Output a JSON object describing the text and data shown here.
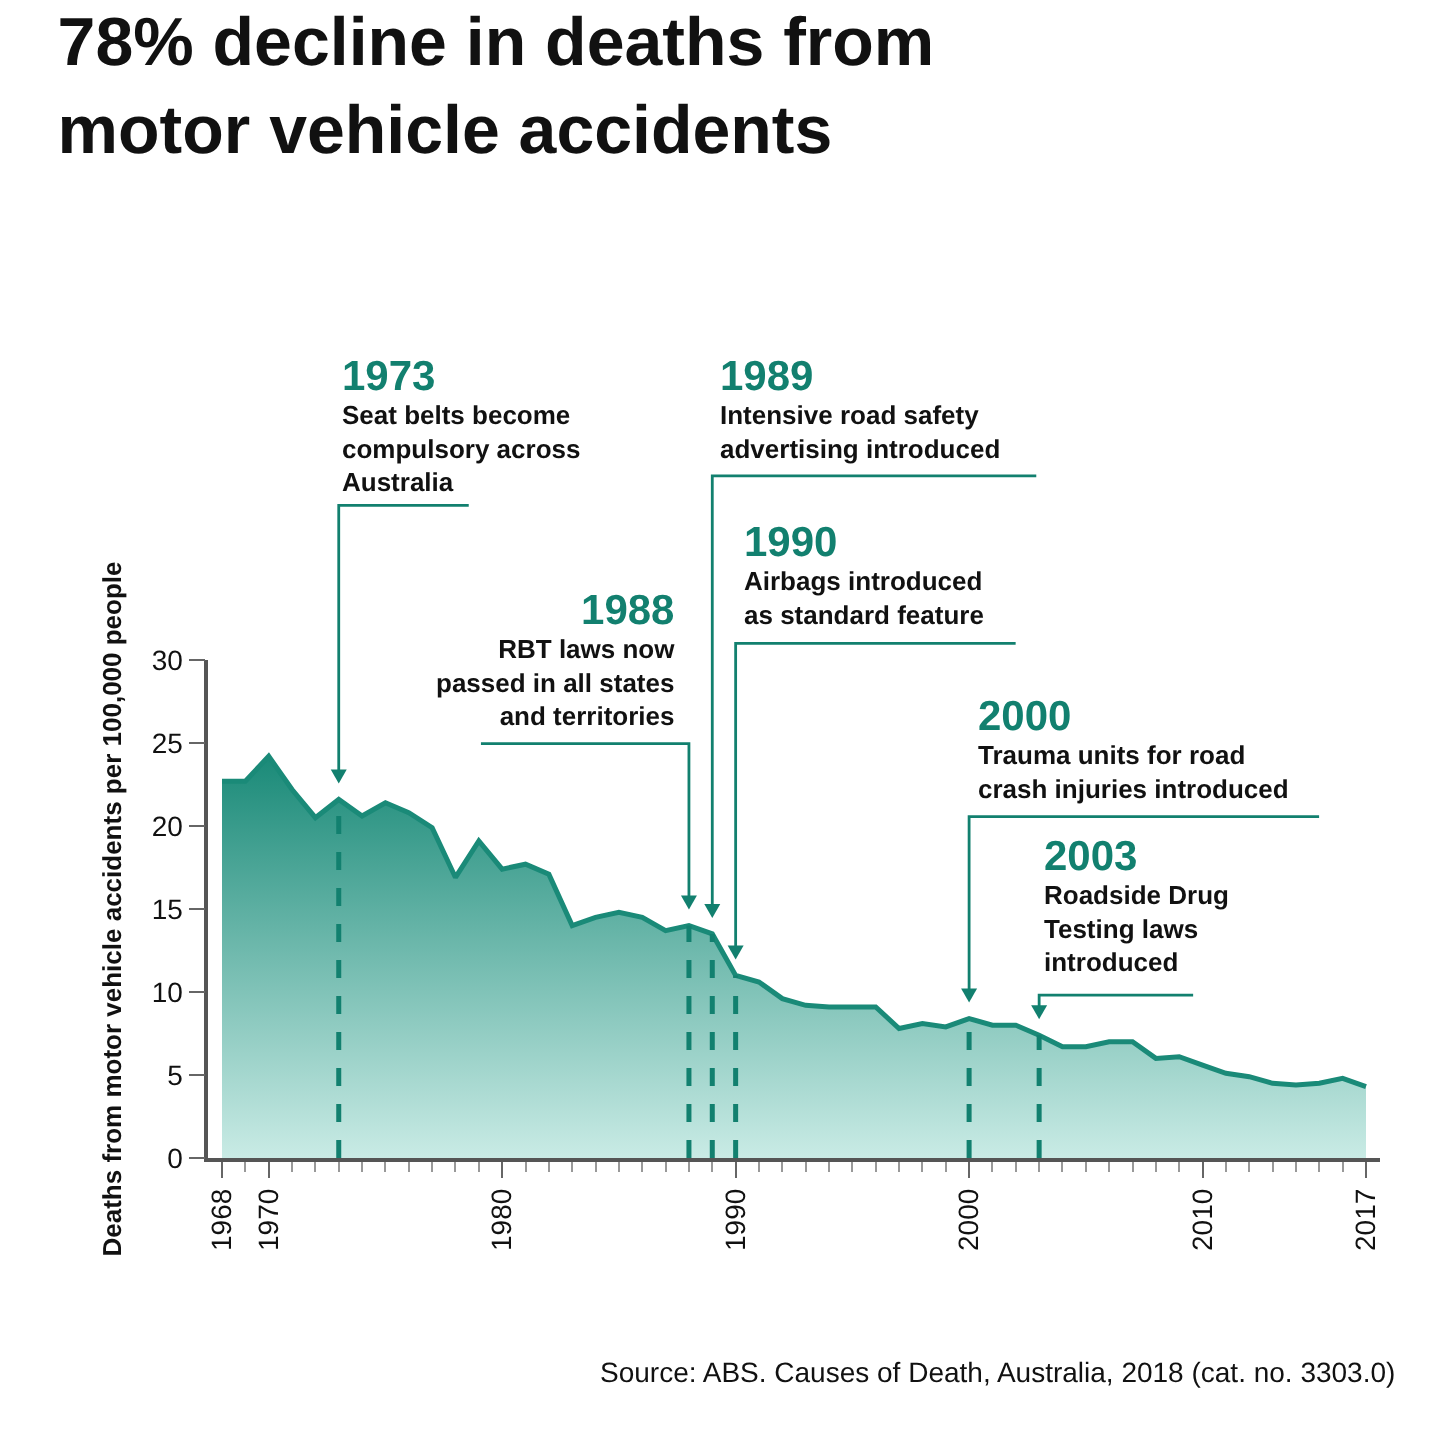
{
  "chart_data": {
    "type": "area",
    "title": "78% decline in deaths from motor vehicle accidents",
    "ylabel": "Deaths from motor vehicle accidents per 100,000 people",
    "x": [
      1968,
      1969,
      1970,
      1971,
      1972,
      1973,
      1974,
      1975,
      1976,
      1977,
      1978,
      1979,
      1980,
      1981,
      1982,
      1983,
      1984,
      1985,
      1986,
      1987,
      1988,
      1989,
      1990,
      1991,
      1992,
      1993,
      1994,
      1995,
      1996,
      1997,
      1998,
      1999,
      2000,
      2001,
      2002,
      2003,
      2004,
      2005,
      2006,
      2007,
      2008,
      2009,
      2010,
      2011,
      2012,
      2013,
      2014,
      2015,
      2016,
      2017
    ],
    "series": [
      {
        "color": "#1a8a78",
        "values": [
          22.7,
          22.7,
          24.2,
          22.2,
          20.5,
          21.6,
          20.6,
          21.4,
          20.8,
          19.9,
          16.9,
          19.1,
          17.4,
          17.7,
          17.1,
          14.0,
          14.5,
          14.8,
          14.5,
          13.7,
          14.0,
          13.5,
          11.0,
          10.6,
          9.6,
          9.2,
          9.1,
          9.1,
          9.1,
          7.8,
          8.1,
          7.9,
          8.4,
          8.0,
          8.0,
          7.4,
          6.7,
          6.7,
          7.0,
          7.0,
          6.0,
          6.1,
          5.6,
          5.1,
          4.9,
          4.5,
          4.4,
          4.5,
          4.8,
          4.3
        ]
      }
    ],
    "xlim": [
      1967.4,
      2017.6
    ],
    "ylim": [
      0,
      30
    ],
    "xticks": [
      1968,
      1970,
      1980,
      1990,
      2000,
      2010,
      2017
    ],
    "yticks": [
      0,
      5,
      10,
      15,
      20,
      25,
      30
    ],
    "grid": false,
    "ref_lines": [
      {
        "axis": "x",
        "value": 1973,
        "label": "1973",
        "line_style": "dashed"
      },
      {
        "axis": "x",
        "value": 1988,
        "label": "1988",
        "line_style": "dashed"
      },
      {
        "axis": "x",
        "value": 1989,
        "label": "1989",
        "line_style": "dashed"
      },
      {
        "axis": "x",
        "value": 1990,
        "label": "1990",
        "line_style": "dashed"
      },
      {
        "axis": "x",
        "value": 2000,
        "label": "2000",
        "line_style": "dashed"
      },
      {
        "axis": "x",
        "value": 2003,
        "label": "2003",
        "line_style": "dashed"
      }
    ],
    "annotations": [
      "Seat belts become\ncompulsory across\nAustralia",
      "RBT laws now\npassed in all states\nand territories",
      "Intensive road safety\nadvertising introduced",
      "Airbags introduced\nas standard feature",
      "Trauma units for road\ncrash injuries introduced",
      "Roadside Drug\nTesting laws\nintroduced",
      "Source: ABS. Causes of Death, Australia, 2018 (cat. no. 3303.0)"
    ]
  }
}
